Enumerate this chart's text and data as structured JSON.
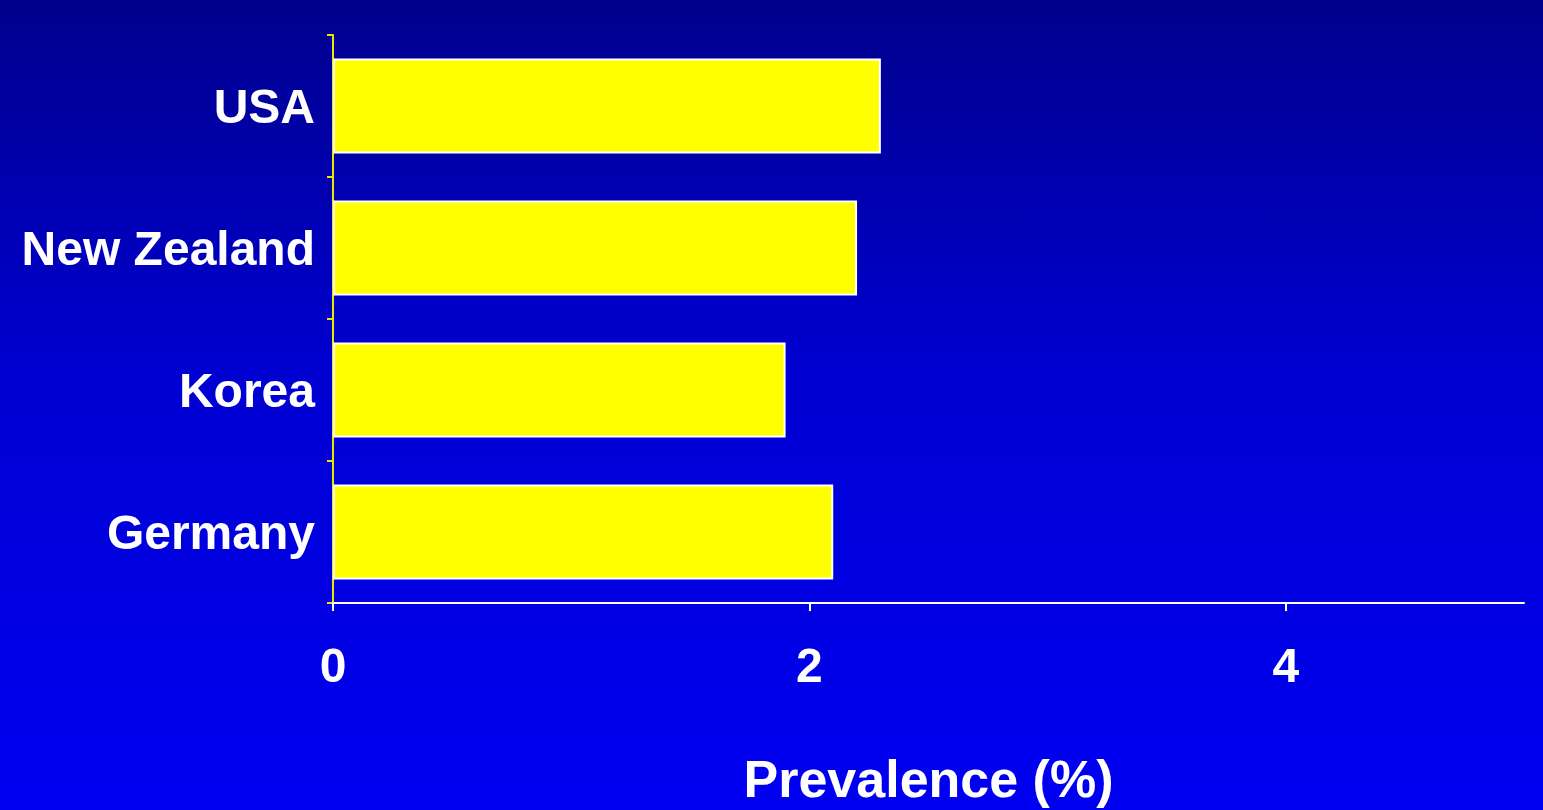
{
  "chart_data": {
    "type": "bar",
    "orientation": "horizontal",
    "categories": [
      "USA",
      "New Zealand",
      "Korea",
      "Germany"
    ],
    "values": [
      2.3,
      2.2,
      1.9,
      2.1
    ],
    "color": "#ffff00",
    "xlabel": "Prevalence (%)",
    "xlim": [
      0,
      5
    ],
    "xticks": [
      0,
      2,
      4
    ]
  }
}
